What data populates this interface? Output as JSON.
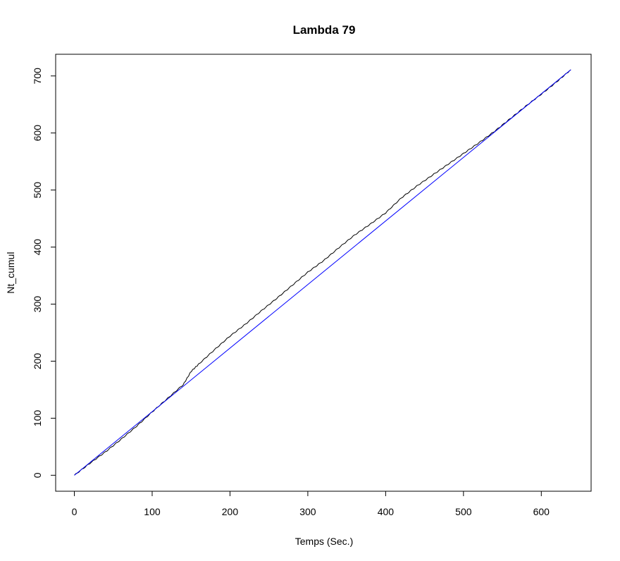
{
  "chart_data": {
    "type": "line",
    "title": "Lambda 79",
    "xlabel": "Temps (Sec.)",
    "ylabel": "Nt_cumul",
    "xlim": [
      -24,
      664
    ],
    "ylim": [
      -28,
      738
    ],
    "x_ticks": [
      0,
      100,
      200,
      300,
      400,
      500,
      600
    ],
    "x_tick_labels": [
      "0",
      "100",
      "200",
      "300",
      "400",
      "500",
      "600"
    ],
    "y_ticks": [
      0,
      100,
      200,
      300,
      400,
      500,
      600,
      700
    ],
    "y_tick_labels": [
      "0",
      "100",
      "200",
      "300",
      "400",
      "500",
      "600",
      "700"
    ],
    "grid": false,
    "legend": "none",
    "series": [
      {
        "color": "#000000",
        "x": [
          0,
          20,
          40,
          60,
          80,
          100,
          120,
          140,
          150,
          160,
          180,
          200,
          220,
          240,
          260,
          280,
          300,
          320,
          340,
          360,
          380,
          400,
          420,
          440,
          460,
          480,
          500,
          520,
          540,
          560,
          580,
          600,
          620,
          638
        ],
        "y": [
          0,
          21,
          41,
          63,
          86,
          111,
          135,
          159,
          182,
          195,
          220,
          244,
          265,
          288,
          310,
          333,
          356,
          376,
          399,
          421,
          440,
          460,
          486,
          507,
          526,
          545,
          564,
          583,
          603,
          625,
          647,
          668,
          690,
          711
        ]
      },
      {
        "color": "#0000ff",
        "x": [
          0,
          638
        ],
        "y": [
          0,
          711
        ]
      }
    ]
  }
}
